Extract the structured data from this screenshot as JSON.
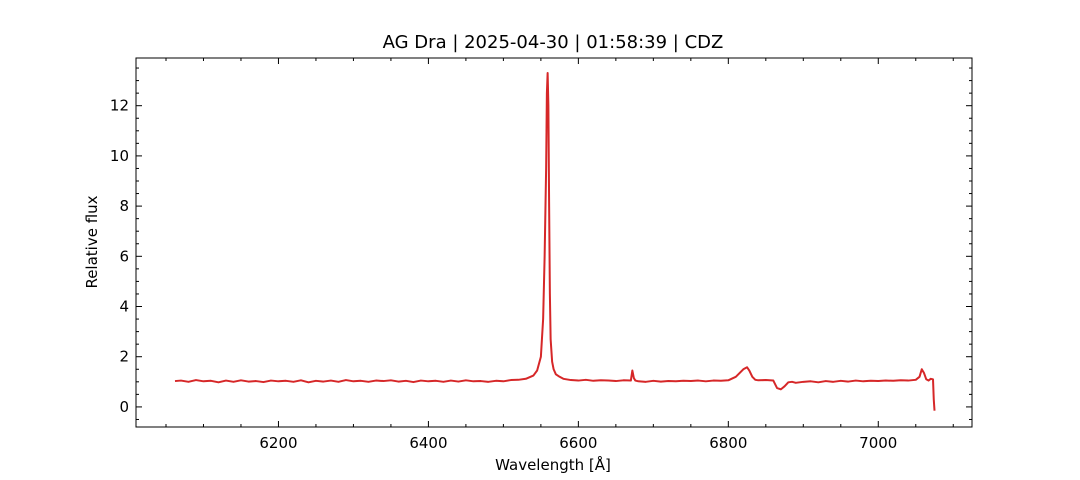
{
  "chart_data": {
    "type": "line",
    "title": "AG Dra | 2025-04-30 | 01:58:39 | CDZ",
    "xlabel": "Wavelength [Å]",
    "ylabel": "Relative flux",
    "xlim": [
      6010,
      7125
    ],
    "ylim": [
      -0.8,
      13.9
    ],
    "xticks": [
      6200,
      6400,
      6600,
      6800,
      7000
    ],
    "yticks": [
      0,
      2,
      4,
      6,
      8,
      10,
      12
    ],
    "grid": false,
    "line_color": "#d62728",
    "series": [
      {
        "x": [
          6062,
          6070,
          6080,
          6090,
          6100,
          6110,
          6120,
          6130,
          6140,
          6150,
          6160,
          6170,
          6180,
          6190,
          6200,
          6210,
          6220,
          6230,
          6240,
          6250,
          6260,
          6270,
          6280,
          6290,
          6300,
          6310,
          6320,
          6330,
          6340,
          6350,
          6360,
          6370,
          6380,
          6390,
          6400,
          6410,
          6420,
          6430,
          6440,
          6450,
          6460,
          6470,
          6480,
          6490,
          6500,
          6510,
          6520,
          6530,
          6540,
          6545,
          6550,
          6553,
          6555,
          6557,
          6558,
          6559,
          6560,
          6561,
          6562,
          6563,
          6565,
          6567,
          6570,
          6575,
          6580,
          6590,
          6600,
          6610,
          6620,
          6630,
          6640,
          6650,
          6660,
          6670,
          6672,
          6674,
          6676,
          6680,
          6690,
          6700,
          6710,
          6720,
          6730,
          6740,
          6750,
          6760,
          6770,
          6780,
          6790,
          6800,
          6810,
          6815,
          6820,
          6825,
          6828,
          6832,
          6836,
          6840,
          6850,
          6860,
          6865,
          6870,
          6875,
          6880,
          6885,
          6890,
          6900,
          6910,
          6920,
          6930,
          6940,
          6950,
          6960,
          6970,
          6980,
          6990,
          7000,
          7010,
          7020,
          7030,
          7040,
          7050,
          7055,
          7058,
          7061,
          7064,
          7067,
          7070,
          7073,
          7074,
          7075
        ],
        "values": [
          1.03,
          1.05,
          1.0,
          1.07,
          1.02,
          1.04,
          0.98,
          1.05,
          1.0,
          1.06,
          1.01,
          1.03,
          0.99,
          1.05,
          1.02,
          1.04,
          1.0,
          1.06,
          0.98,
          1.04,
          1.01,
          1.05,
          1.0,
          1.07,
          1.02,
          1.04,
          1.0,
          1.05,
          1.03,
          1.06,
          1.01,
          1.04,
          0.99,
          1.05,
          1.02,
          1.04,
          1.0,
          1.05,
          1.01,
          1.06,
          1.02,
          1.03,
          1.0,
          1.04,
          1.02,
          1.07,
          1.08,
          1.12,
          1.25,
          1.45,
          2.0,
          3.5,
          6.0,
          9.5,
          12.5,
          13.3,
          12.0,
          8.0,
          4.5,
          2.7,
          1.8,
          1.5,
          1.3,
          1.2,
          1.12,
          1.07,
          1.05,
          1.08,
          1.04,
          1.06,
          1.05,
          1.03,
          1.06,
          1.05,
          1.45,
          1.15,
          1.05,
          1.02,
          1.0,
          1.04,
          1.01,
          1.03,
          1.02,
          1.04,
          1.03,
          1.05,
          1.02,
          1.05,
          1.04,
          1.06,
          1.2,
          1.35,
          1.5,
          1.58,
          1.45,
          1.2,
          1.08,
          1.06,
          1.07,
          1.05,
          0.75,
          0.7,
          0.82,
          0.98,
          1.0,
          0.96,
          1.0,
          1.02,
          0.98,
          1.03,
          1.0,
          1.04,
          1.01,
          1.05,
          1.02,
          1.04,
          1.03,
          1.05,
          1.04,
          1.06,
          1.05,
          1.08,
          1.2,
          1.5,
          1.35,
          1.1,
          1.05,
          1.12,
          1.1,
          0.3,
          -0.15
        ]
      }
    ]
  }
}
